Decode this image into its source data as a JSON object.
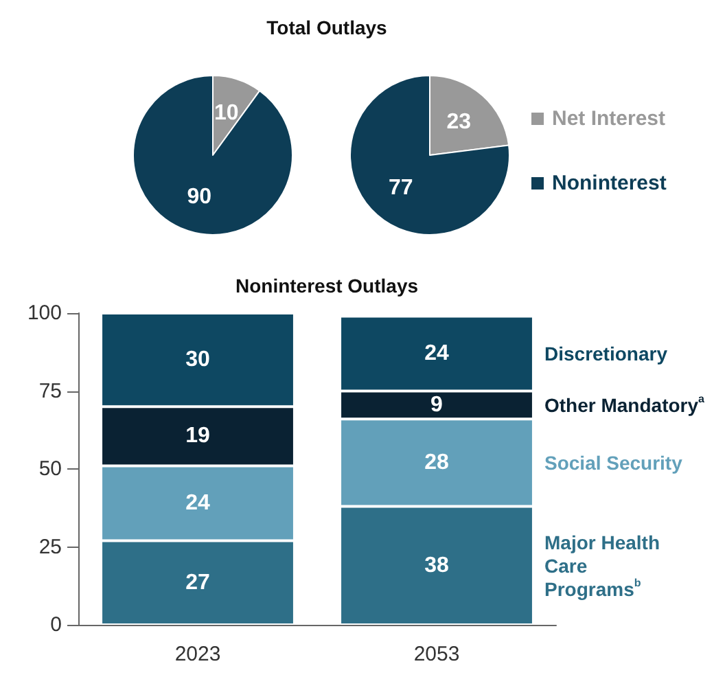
{
  "chart_data": [
    {
      "type": "pie",
      "title": "Total Outlays",
      "categories": [
        "Net Interest",
        "Noninterest"
      ],
      "colors": [
        "#999999",
        "#0d3d56"
      ],
      "data_labels": true,
      "legend": "right",
      "series": [
        {
          "values": [
            10,
            90
          ]
        },
        {
          "values": [
            23,
            77
          ]
        }
      ]
    },
    {
      "type": "bar",
      "title": "Noninterest Outlays",
      "categories": [
        "2023",
        "2053"
      ],
      "stacked": true,
      "ylim": [
        0,
        100
      ],
      "yticks": [
        0,
        25,
        50,
        75,
        100
      ],
      "grid": false,
      "data_labels": true,
      "series": [
        {
          "name": "Major Health Care Programs$^{b}$",
          "color": "#2e6f88",
          "values": [
            27,
            38
          ]
        },
        {
          "name": "Social Security",
          "color": "#62a0ba",
          "values": [
            24,
            28
          ]
        },
        {
          "name": "Other Mandatory$^{a}$",
          "color": "#0a2233",
          "values": [
            19,
            9
          ]
        },
        {
          "name": "Discretionary",
          "color": "#0e4862",
          "values": [
            30,
            24
          ]
        }
      ]
    }
  ]
}
